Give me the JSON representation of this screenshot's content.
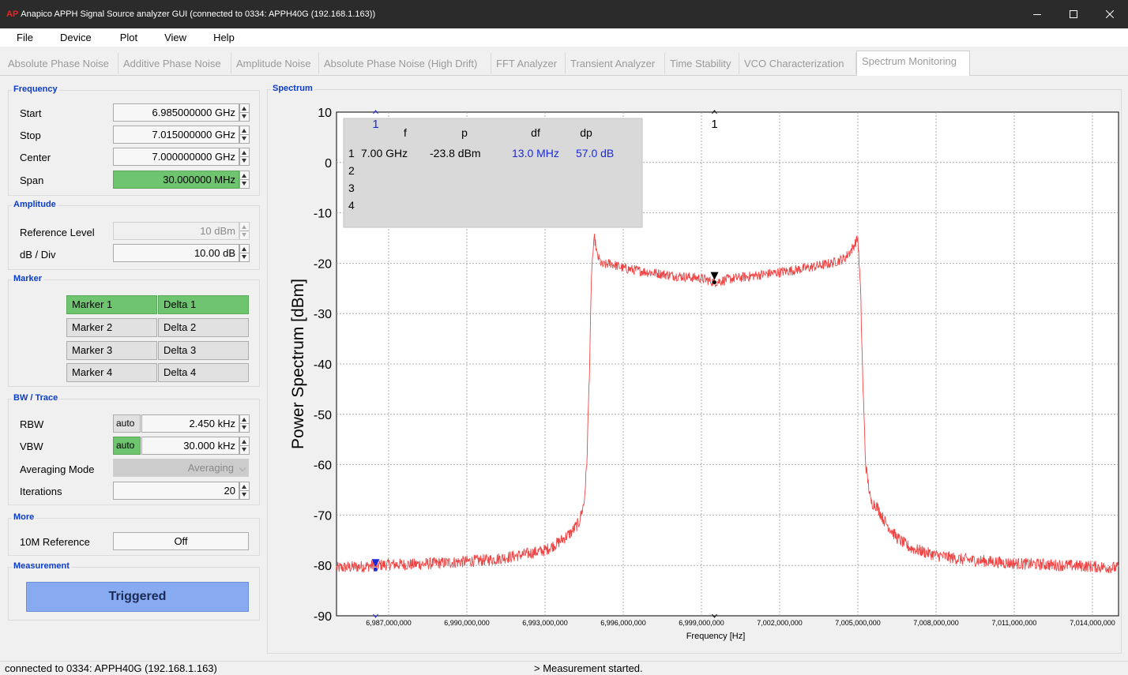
{
  "window": {
    "logo": "AP",
    "title": "Anapico APPH Signal Source analyzer GUI (connected to 0334: APPH40G (192.168.1.163))"
  },
  "menu": [
    "File",
    "Device",
    "Plot",
    "View",
    "Help"
  ],
  "tabs": [
    "Absolute Phase Noise",
    "Additive Phase Noise",
    "Amplitude Noise",
    "Absolute Phase Noise (High Drift)",
    "FFT Analyzer",
    "Transient Analyzer",
    "Time Stability",
    "VCO Characterization",
    "Spectrum Monitoring"
  ],
  "active_tab": "Spectrum Monitoring",
  "frequency": {
    "title": "Frequency",
    "start_label": "Start",
    "start_value": "6.985000000 GHz",
    "stop_label": "Stop",
    "stop_value": "7.015000000 GHz",
    "center_label": "Center",
    "center_value": "7.000000000 GHz",
    "span_label": "Span",
    "span_value": "30.000000 MHz"
  },
  "amplitude": {
    "title": "Amplitude",
    "ref_label": "Reference Level",
    "ref_value": "10 dBm",
    "dbdiv_label": "dB / Div",
    "dbdiv_value": "10.00 dB"
  },
  "marker": {
    "title": "Marker",
    "m1": "Marker 1",
    "d1": "Delta 1",
    "m2": "Marker 2",
    "d2": "Delta 2",
    "m3": "Marker 3",
    "d3": "Delta 3",
    "m4": "Marker 4",
    "d4": "Delta 4"
  },
  "bwtrace": {
    "title": "BW / Trace",
    "rbw_label": "RBW",
    "rbw_auto": "auto",
    "rbw_value": "2.450 kHz",
    "vbw_label": "VBW",
    "vbw_auto": "auto",
    "vbw_value": "30.000 kHz",
    "avg_label": "Averaging Mode",
    "avg_value": "Averaging",
    "iter_label": "Iterations",
    "iter_value": "20"
  },
  "more": {
    "title": "More",
    "ref10m_label": "10M Reference",
    "ref10m_value": "Off"
  },
  "measurement": {
    "title": "Measurement",
    "trigger_label": "Triggered"
  },
  "spectrum_title": "Spectrum",
  "marker_table": {
    "headers": [
      "f",
      "p",
      "df",
      "dp"
    ],
    "rows": [
      {
        "n": "1",
        "f": "7.00 GHz",
        "p": "-23.8 dBm",
        "df": "13.0 MHz",
        "dp": "57.0 dB"
      },
      {
        "n": "2",
        "f": "",
        "p": "",
        "df": "",
        "dp": ""
      },
      {
        "n": "3",
        "f": "",
        "p": "",
        "df": "",
        "dp": ""
      },
      {
        "n": "4",
        "f": "",
        "p": "",
        "df": "",
        "dp": ""
      }
    ]
  },
  "marker_labels": {
    "main": "1",
    "delta": "1"
  },
  "colors": {
    "trace": "#ee4444",
    "marker_main": "#000000",
    "marker_delta": "#1a2ad8",
    "active_green": "#6fc46f"
  },
  "chart_data": {
    "type": "line",
    "title": "",
    "xlabel": "Frequency [Hz]",
    "ylabel": "Power Spectrum [dBm]",
    "xlim": [
      6985000000,
      7015000000
    ],
    "ylim": [
      -90,
      10
    ],
    "grid": true,
    "x_ticks": [
      6987000000,
      6990000000,
      6993000000,
      6996000000,
      6999000000,
      7002000000,
      7005000000,
      7008000000,
      7011000000,
      7014000000
    ],
    "x_tick_labels": [
      "6,987,000,000",
      "6,990,000,000",
      "6,993,000,000",
      "6,996,000,000",
      "6,999,000,000",
      "7,002,000,000",
      "7,005,000,000",
      "7,008,000,000",
      "7,011,000,000",
      "7,014,000,000"
    ],
    "y_ticks": [
      10,
      0,
      -10,
      -20,
      -30,
      -40,
      -50,
      -60,
      -70,
      -80,
      -90
    ],
    "y_tick_labels": [
      "10",
      "0",
      "-10",
      "-20",
      "-30",
      "-40",
      "-50",
      "-60",
      "-70",
      "-80",
      "-90"
    ],
    "series": [
      {
        "x": [
          6985000000,
          6986000000,
          6987000000,
          6988000000,
          6989000000,
          6990000000,
          6991000000,
          6992000000,
          6993000000,
          6993500000,
          6994000000,
          6994300000,
          6994500000,
          6994600000,
          6994700000,
          6994750000,
          6994800000,
          6994900000,
          6995000000,
          6995200000,
          6995500000,
          6996000000,
          6997000000,
          6998000000,
          6999000000,
          6999500000,
          7000000000,
          7001000000,
          7002000000,
          7003000000,
          7004000000,
          7004500000,
          7004800000,
          7005000000,
          7005100000,
          7005200000,
          7005300000,
          7005500000,
          7005700000,
          7006000000,
          7006500000,
          7007000000,
          7008000000,
          7009000000,
          7010000000,
          7011000000,
          7012000000,
          7013000000,
          7014000000,
          7015000000
        ],
        "y": [
          -80.5,
          -80.2,
          -79.8,
          -79.8,
          -79.5,
          -79.2,
          -78.8,
          -78.0,
          -77.0,
          -75.5,
          -73.5,
          -71.5,
          -67.5,
          -60.0,
          -42.0,
          -30.0,
          -20.0,
          -15.0,
          -18.5,
          -20.5,
          -20.0,
          -21.0,
          -21.8,
          -22.5,
          -23.0,
          -23.8,
          -23.2,
          -22.5,
          -21.8,
          -21.0,
          -20.0,
          -19.0,
          -17.0,
          -15.0,
          -25.0,
          -45.0,
          -60.0,
          -67.5,
          -68.0,
          -71.0,
          -74.5,
          -76.5,
          -78.0,
          -78.8,
          -79.2,
          -79.6,
          -79.8,
          -80.0,
          -80.2,
          -80.5
        ]
      }
    ],
    "markers": [
      {
        "id": "1",
        "type": "main",
        "x": 6999500000,
        "y": -23.8
      },
      {
        "id": "1",
        "type": "delta",
        "x": 6986500000,
        "y": -80.8
      }
    ]
  },
  "status": {
    "left": "connected to 0334: APPH40G (192.168.1.163)",
    "center": "> Measurement started."
  }
}
